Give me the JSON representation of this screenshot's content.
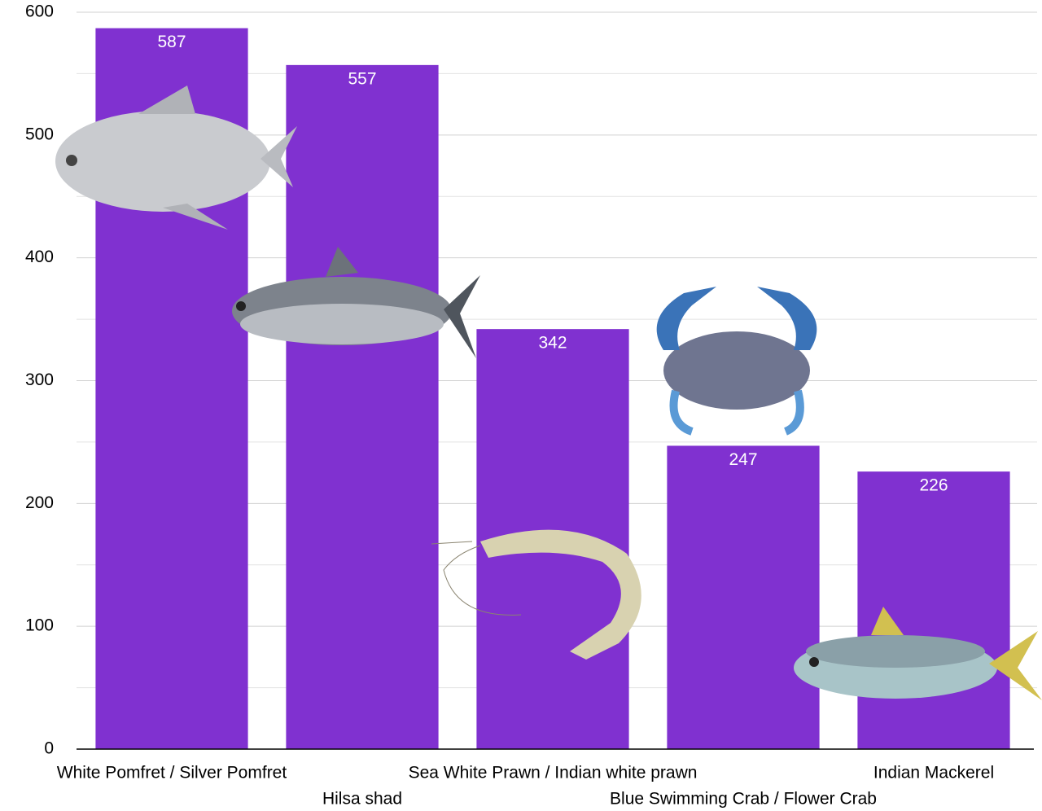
{
  "chart_data": {
    "type": "bar",
    "categories": [
      "White Pomfret / Silver Pomfret",
      "Hilsa shad",
      "Sea White Prawn / Indian white prawn",
      "Blue Swimming Crab / Flower Crab",
      "Indian Mackerel"
    ],
    "values": [
      587,
      557,
      342,
      247,
      226
    ],
    "color": "#8031d0",
    "ylim": [
      0,
      600
    ],
    "yticks": [
      0,
      100,
      200,
      300,
      400,
      500,
      600
    ],
    "minor_yticks": [
      50,
      150,
      250,
      350,
      450,
      550
    ],
    "grid": true
  }
}
